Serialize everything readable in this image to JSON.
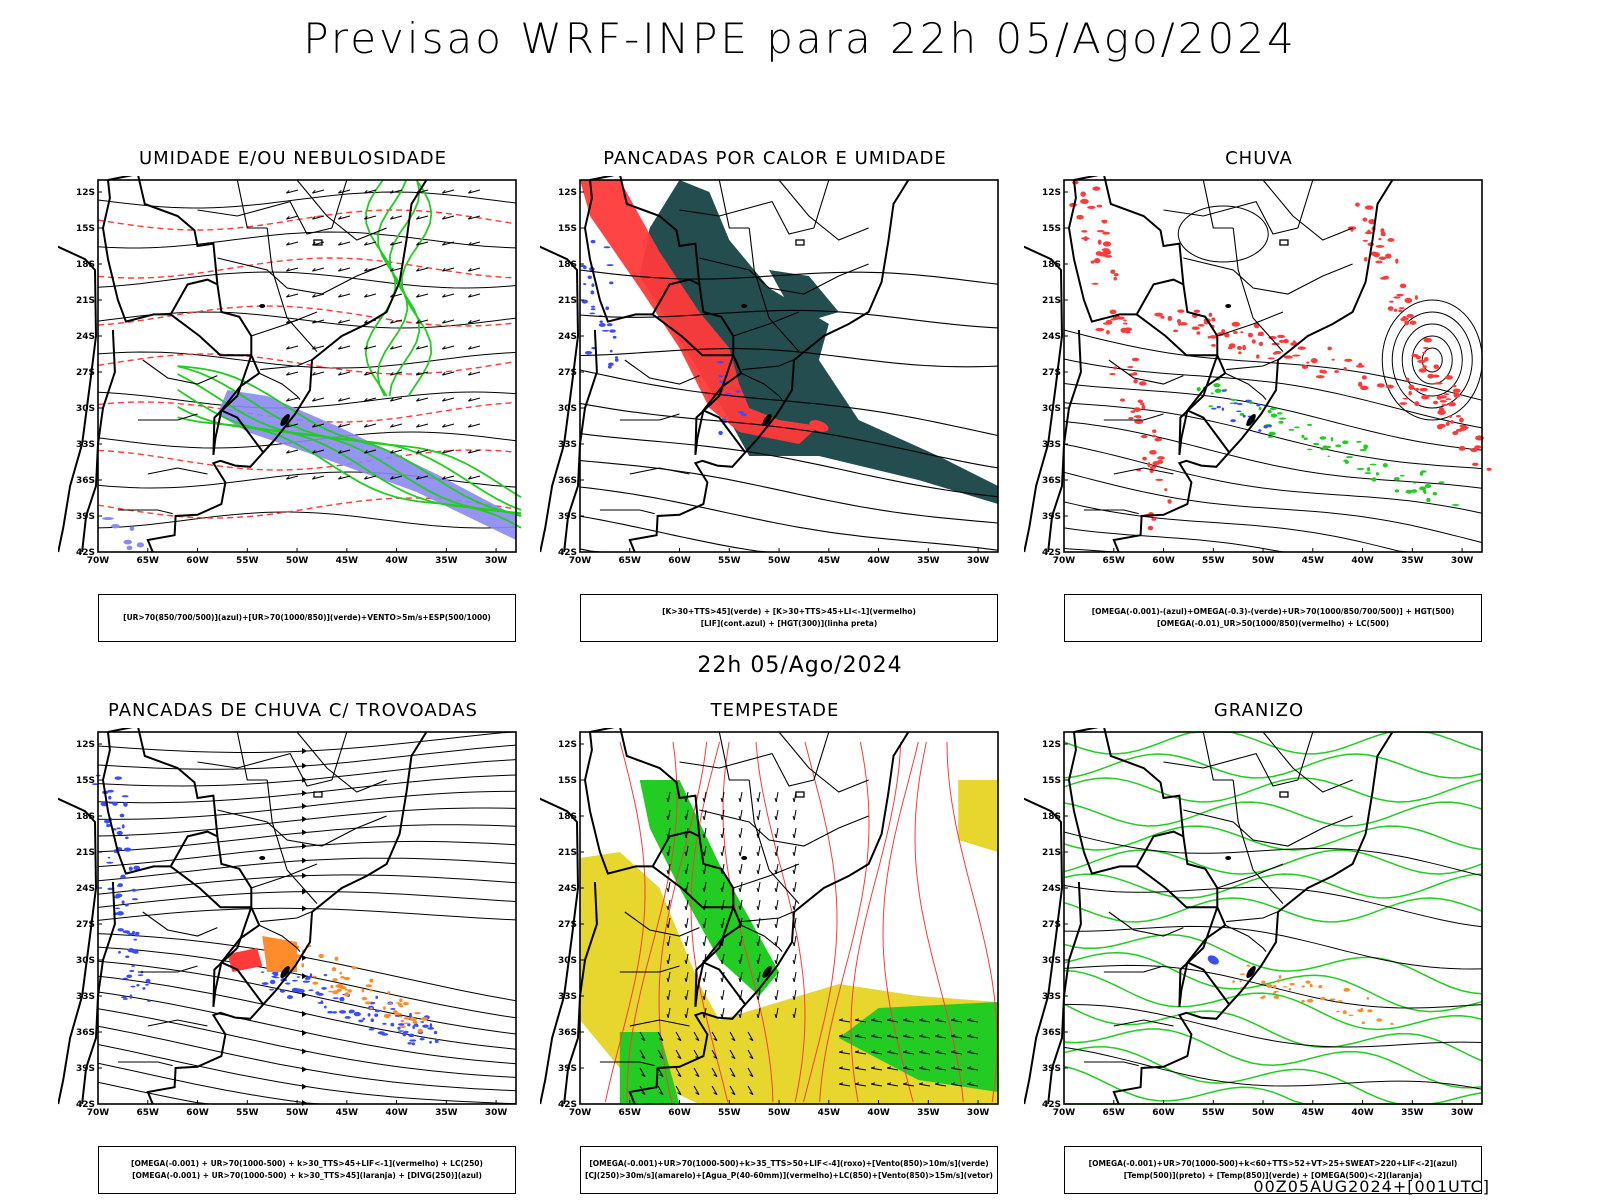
{
  "header": {
    "title": "Previsao WRF-INPE  para 22h 05/Ago/2024"
  },
  "middle": {
    "title": "22h 05/Ago/2024"
  },
  "footer": {
    "stamp": "00Z05AUG2024+[001UTC]"
  },
  "axes": {
    "lat_labels": [
      "12S",
      "15S",
      "18S",
      "21S",
      "24S",
      "27S",
      "30S",
      "33S",
      "36S",
      "39S",
      "42S"
    ],
    "lon_labels": [
      "70W",
      "65W",
      "60W",
      "55W",
      "50W",
      "45W",
      "40W",
      "35W",
      "30W"
    ]
  },
  "colors": {
    "blue": "#3b4cff",
    "green": "#22cc22",
    "red": "#ff3a3a",
    "teal": "#244d4f",
    "orange": "#ff8c2a",
    "yellow": "#e6d62e",
    "purple": "#8a8af0"
  },
  "panels": [
    {
      "title": "UMIDADE E/OU NEBULOSIDADE",
      "legend": [
        "[UR>70(850/700/500)](azul)+[UR>70(1000/850)](verde)+VENTO>5m/s+ESP(500/1000)"
      ]
    },
    {
      "title": "PANCADAS POR CALOR E UMIDADE",
      "legend": [
        "[K>30+TTS>45](verde) + [K>30+TTS>45+LI<-1](vermelho)",
        "[LIF](cont.azul) + [HGT(300)](linha preta)"
      ]
    },
    {
      "title": "CHUVA",
      "legend": [
        "[OMEGA(-0.001)-(azul)+OMEGA(-0.3)-(verde)+UR>70(1000/850/700/500)] + HGT(500)",
        "[OMEGA(-0.01)_UR>50(1000/850)(vermelho) + LC(500)"
      ]
    },
    {
      "title": "PANCADAS DE CHUVA C/ TROVOADAS",
      "legend": [
        "[OMEGA(-0.001) + UR>70(1000-500) + k>30_TTS>45+LIF<-1](vermelho) + LC(250)",
        "[OMEGA(-0.001) + UR>70(1000-500) + k>30_TTS>45](laranja) + [DIVG(250)](azul)"
      ]
    },
    {
      "title": "TEMPESTADE",
      "legend": [
        "[OMEGA(-0.001)+UR>70(1000-500)+k>35_TTS>50+LIF<-4](roxo)+[Vento(850)>10m/s](verde)",
        "[CJ(250)>30m/s](amarelo)+[Agua_P(40-60mm)](vermelho)+LC(850)+[Vento(850)>15m/s](vetor)"
      ]
    },
    {
      "title": "GRANIZO",
      "legend": [
        "[OMEGA(-0.001)+UR>70(1000-500)+k<60+TTS>52+VT>25+SWEAT>220+LIF<-2](azul)",
        "[Temp(500)](preto) + [Temp(850)](verde) + [OMEGA(500)<-2](laranja)"
      ]
    }
  ]
}
